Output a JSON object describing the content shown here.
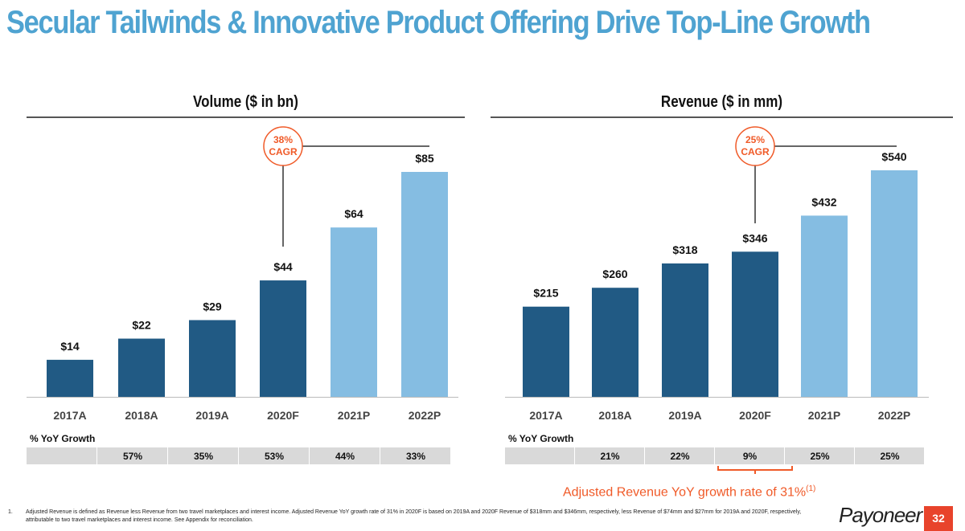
{
  "title": "Secular Tailwinds & Innovative Product Offering Drive Top-Line Growth",
  "colors": {
    "actual": "#215a84",
    "projected": "#85bde2",
    "accent": "#f05a28",
    "title": "#4fa3d1"
  },
  "chart_data": [
    {
      "type": "bar",
      "title": "Volume ($ in bn)",
      "categories": [
        "2017A",
        "2018A",
        "2019A",
        "2020F",
        "2021P",
        "2022P"
      ],
      "values": [
        14,
        22,
        29,
        44,
        64,
        85
      ],
      "data_labels": [
        "$14",
        "$22",
        "$29",
        "$44",
        "$64",
        "$85"
      ],
      "projected": [
        false,
        false,
        false,
        false,
        true,
        true
      ],
      "cagr_label": [
        "38%",
        "CAGR"
      ],
      "growth_label": "% YoY Growth",
      "growth": [
        "",
        "57%",
        "35%",
        "53%",
        "44%",
        "33%"
      ]
    },
    {
      "type": "bar",
      "title": "Revenue ($ in mm)",
      "categories": [
        "2017A",
        "2018A",
        "2019A",
        "2020F",
        "2021P",
        "2022P"
      ],
      "values": [
        215,
        260,
        318,
        346,
        432,
        540
      ],
      "data_labels": [
        "$215",
        "$260",
        "$318",
        "$346",
        "$432",
        "$540"
      ],
      "projected": [
        false,
        false,
        false,
        false,
        true,
        true
      ],
      "cagr_label": [
        "25%",
        "CAGR"
      ],
      "growth_label": "% YoY Growth",
      "growth": [
        "",
        "21%",
        "22%",
        "9%",
        "25%",
        "25%"
      ]
    }
  ],
  "adjusted_note": "Adjusted Revenue YoY growth rate of 31%",
  "adjusted_note_sup": "(1)",
  "footnote": {
    "num": "1.",
    "text": "Adjusted Revenue is defined as Revenue less Revenue from two travel marketplaces and interest income. Adjusted Revenue YoY growth rate of 31% in 2020F is based on 2019A and 2020F Revenue of $318mm and $346mm, respectively, less Revenue of $74mm and $27mm for 2019A and 2020F, respectively, attributable to two travel marketplaces and interest income. See Appendix for reconciliation."
  },
  "logo": "Payoneer",
  "page_number": "32"
}
